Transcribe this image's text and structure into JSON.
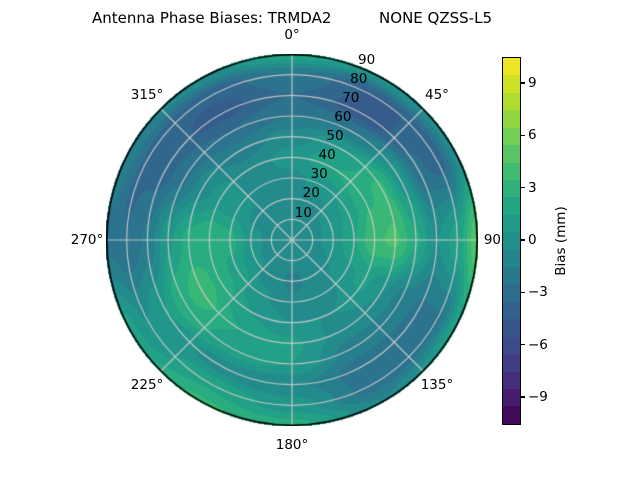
{
  "chart_data": {
    "type": "heatmap",
    "projection": "polar",
    "title": "Antenna Phase Biases: TRMDA2          NONE QZSS-L5",
    "colormap": "viridis",
    "colormap_stops": [
      "#440154",
      "#482878",
      "#3e4989",
      "#355f8d",
      "#2a788e",
      "#21918c",
      "#22a884",
      "#44bf70",
      "#7ad151",
      "#bddf26",
      "#fde725"
    ],
    "value_range_mm": [
      -10.5,
      10.5
    ],
    "contour_step_mm": 1,
    "grid_on": true,
    "azimuth_deg": [
      0,
      30,
      60,
      90,
      120,
      150,
      180,
      210,
      240,
      270,
      300,
      330
    ],
    "zenith_deg": [
      0,
      10,
      20,
      30,
      40,
      50,
      60,
      70,
      80,
      90
    ],
    "bias_mm": [
      [
        -0.5,
        -0.5,
        -0.5,
        -0.3,
        0.5,
        -0.5,
        -2.0,
        -3.0,
        -2.0,
        1.8
      ],
      [
        -0.5,
        -0.5,
        -0.3,
        0.5,
        2.0,
        1.0,
        -2.0,
        -4.6,
        -4.2,
        0.3
      ],
      [
        -0.5,
        -0.3,
        0.2,
        1.2,
        2.8,
        3.2,
        0.5,
        -2.8,
        -3.6,
        -0.5
      ],
      [
        -0.5,
        -0.3,
        0.5,
        2.0,
        3.8,
        4.2,
        2.2,
        0.0,
        1.5,
        4.8
      ],
      [
        -0.5,
        -0.5,
        0.0,
        0.8,
        1.2,
        0.0,
        -1.5,
        -2.2,
        -2.2,
        1.5
      ],
      [
        -0.5,
        -0.6,
        -0.8,
        -0.5,
        0.0,
        -0.5,
        -1.5,
        -2.5,
        -2.5,
        -0.8
      ],
      [
        -0.5,
        -0.8,
        -1.2,
        -0.8,
        0.0,
        1.2,
        1.0,
        -0.8,
        0.5,
        2.5
      ],
      [
        -0.5,
        -0.6,
        -0.5,
        0.2,
        1.0,
        2.0,
        1.5,
        -0.5,
        1.8,
        3.2
      ],
      [
        -0.5,
        -0.5,
        0.2,
        1.5,
        2.8,
        3.5,
        2.8,
        1.0,
        0.0,
        1.5
      ],
      [
        -0.5,
        -0.4,
        0.6,
        2.4,
        3.0,
        2.4,
        0.8,
        -1.8,
        -3.0,
        -2.2
      ],
      [
        -0.5,
        -0.5,
        -0.2,
        0.6,
        0.6,
        -0.5,
        -2.2,
        -3.4,
        -3.2,
        -1.2
      ],
      [
        -0.5,
        -0.5,
        -0.5,
        -0.5,
        -0.6,
        -1.5,
        -3.0,
        -4.4,
        -3.8,
        -0.2
      ]
    ],
    "angular_ticks": [
      {
        "label": "0°",
        "deg": 0
      },
      {
        "label": "45°",
        "deg": 45
      },
      {
        "label": "90",
        "deg": 90
      },
      {
        "label": "135°",
        "deg": 135
      },
      {
        "label": "180°",
        "deg": 180
      },
      {
        "label": "225°",
        "deg": 225
      },
      {
        "label": "270°",
        "deg": 270
      },
      {
        "label": "315°",
        "deg": 315
      }
    ],
    "radial_ticks": [
      {
        "label": "10",
        "r": 10
      },
      {
        "label": "20",
        "r": 20
      },
      {
        "label": "30",
        "r": 30
      },
      {
        "label": "40",
        "r": 40
      },
      {
        "label": "50",
        "r": 50
      },
      {
        "label": "60",
        "r": 60
      },
      {
        "label": "70",
        "r": 70
      },
      {
        "label": "80",
        "r": 80
      },
      {
        "label": "90",
        "r": 90
      }
    ],
    "radial_label_azimuth_deg": 22.5,
    "colorbar": {
      "label": "Bias (mm)",
      "ticks": [
        {
          "label": "9",
          "value": 9
        },
        {
          "label": "6",
          "value": 6
        },
        {
          "label": "3",
          "value": 3
        },
        {
          "label": "0",
          "value": 0
        },
        {
          "label": "−3",
          "value": -3
        },
        {
          "label": "−6",
          "value": -6
        },
        {
          "label": "−9",
          "value": -9
        }
      ]
    }
  }
}
